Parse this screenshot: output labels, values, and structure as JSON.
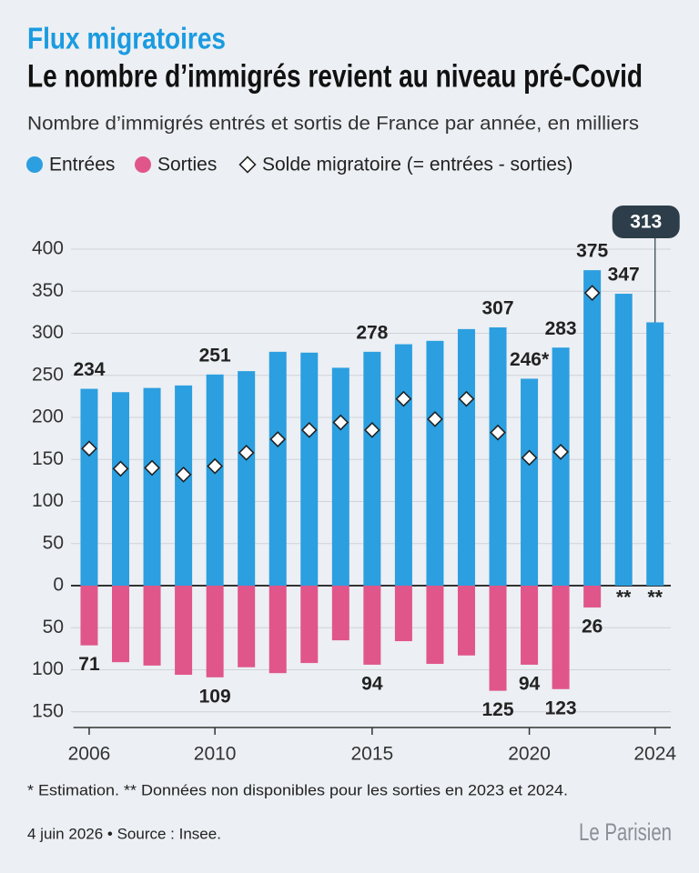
{
  "chart_data": {
    "type": "bar",
    "kicker": "Flux migratoires",
    "title": "Le nombre d’immigrés revient au niveau pré-Covid",
    "subtitle": "Nombre d’immigrés entrés et sortis de France par année, en milliers",
    "x": [
      2006,
      2007,
      2008,
      2009,
      2010,
      2011,
      2012,
      2013,
      2014,
      2015,
      2016,
      2017,
      2018,
      2019,
      2020,
      2021,
      2022,
      2023,
      2024
    ],
    "series": [
      {
        "name": "Entrées",
        "color": "#2b9fe0",
        "values": [
          234,
          230,
          235,
          238,
          251,
          255,
          278,
          277,
          259,
          278,
          287,
          291,
          305,
          307,
          246,
          283,
          375,
          347,
          313
        ],
        "value_labels": [
          "234",
          null,
          null,
          null,
          "251",
          null,
          null,
          null,
          null,
          "278",
          null,
          null,
          null,
          "307",
          "246*",
          "283",
          "375",
          "347",
          "313"
        ]
      },
      {
        "name": "Sorties",
        "color": "#e0568a",
        "values": [
          -71,
          -91,
          -95,
          -106,
          -109,
          -97,
          -104,
          -92,
          -65,
          -94,
          -66,
          -93,
          -83,
          -125,
          -94,
          -123,
          -26,
          null,
          null
        ],
        "value_labels": [
          "71",
          null,
          null,
          null,
          "109",
          null,
          null,
          null,
          null,
          "94",
          null,
          null,
          null,
          "125",
          "94",
          "123",
          "26",
          "**",
          "**"
        ]
      },
      {
        "name": "Solde migratoire (= entrées - sorties)",
        "color": "#ffffff",
        "values": [
          163,
          139,
          140,
          132,
          142,
          158,
          174,
          185,
          194,
          185,
          222,
          198,
          222,
          182,
          152,
          159,
          348,
          null,
          null
        ]
      }
    ],
    "xlim": [
      2005.5,
      2024.5
    ],
    "xticks": [
      2006,
      2010,
      2015,
      2020,
      2024
    ],
    "ylim": [
      -160,
      420
    ],
    "yticks": [
      {
        "value": -150,
        "label": "150"
      },
      {
        "value": -100,
        "label": "100"
      },
      {
        "value": -50,
        "label": "50"
      },
      0,
      50,
      100,
      150,
      200,
      250,
      300,
      350,
      400
    ],
    "grid": true,
    "notes": "* Estimation.  ** Données non disponibles pour les sorties en 2023 et 2024.",
    "source": "4 juin 2026 • Source : Insee.",
    "logo": "Le Parisien"
  }
}
